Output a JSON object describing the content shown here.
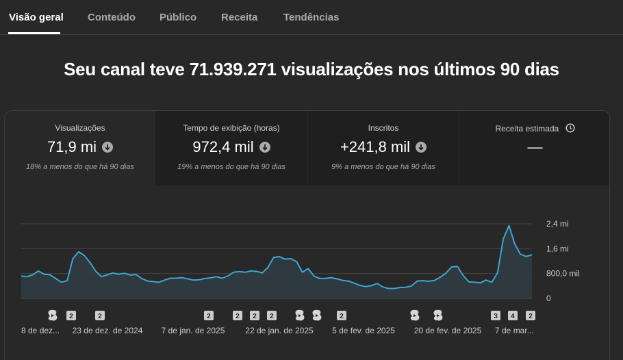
{
  "tabs": [
    {
      "label": "Visão geral",
      "active": true
    },
    {
      "label": "Conteúdo",
      "active": false
    },
    {
      "label": "Público",
      "active": false
    },
    {
      "label": "Receita",
      "active": false
    },
    {
      "label": "Tendências",
      "active": false
    }
  ],
  "headline": "Seu canal teve 71.939.271 visualizações nos últimos 90 dias",
  "metrics": [
    {
      "label": "Visualizações",
      "value": "71,9 mi",
      "comparison": "18% a menos do que há 90 dias",
      "trend_icon": "arrow-down-circle-icon"
    },
    {
      "label": "Tempo de exibição (horas)",
      "value": "972,4 mil",
      "comparison": "19% a menos do que há 90 dias",
      "trend_icon": "arrow-down-circle-icon"
    },
    {
      "label": "Inscritos",
      "value": "+241,8 mil",
      "comparison": "9% a menos do que há 90 dias",
      "trend_icon": "arrow-down-circle-icon"
    },
    {
      "label": "Receita estimada",
      "value": "—",
      "comparison": "",
      "trend_icon": "clock-icon"
    }
  ],
  "colors": {
    "background": "#282828",
    "line": "#3ea6d1",
    "fill": "#2f3b42",
    "marker": "#cccccc"
  },
  "chart_data": {
    "type": "area",
    "y_tick_labels": [
      "0",
      "800,0 mil",
      "1,6 mi",
      "2,4 mi"
    ],
    "y_ticks": [
      0,
      800000,
      1600000,
      2400000
    ],
    "ylim": [
      0,
      2400000
    ],
    "x_tick_labels": [
      "8 de dez...",
      "23 de dez. de 2024",
      "7 de jan. de 2025",
      "22 de jan. de 2025",
      "5 de fev. de 2025",
      "20 de fev. de 2025",
      "7 de mar..."
    ],
    "grid": true,
    "series": [
      {
        "values": [
          720000,
          700000,
          760000,
          880000,
          780000,
          760000,
          640000,
          520000,
          570000,
          1280000,
          1500000,
          1380000,
          1150000,
          870000,
          700000,
          760000,
          820000,
          780000,
          810000,
          750000,
          770000,
          640000,
          560000,
          540000,
          520000,
          590000,
          650000,
          650000,
          670000,
          630000,
          590000,
          600000,
          640000,
          660000,
          700000,
          650000,
          720000,
          840000,
          860000,
          840000,
          880000,
          870000,
          820000,
          1000000,
          1320000,
          1340000,
          1260000,
          1280000,
          1180000,
          840000,
          960000,
          720000,
          640000,
          640000,
          670000,
          630000,
          580000,
          560000,
          490000,
          420000,
          380000,
          410000,
          480000,
          370000,
          320000,
          320000,
          350000,
          360000,
          400000,
          560000,
          570000,
          550000,
          580000,
          680000,
          810000,
          1010000,
          1030000,
          740000,
          530000,
          520000,
          500000,
          590000,
          520000,
          820000,
          1910000,
          2340000,
          1750000,
          1420000,
          1350000,
          1400000
        ]
      }
    ],
    "annotation_markers": [
      {
        "type": "shorts",
        "label": ""
      },
      {
        "type": "count",
        "label": "2"
      },
      {
        "type": "count",
        "label": "2"
      },
      {
        "type": "count",
        "label": "2"
      },
      {
        "type": "count",
        "label": "2"
      },
      {
        "type": "count",
        "label": "2"
      },
      {
        "type": "count",
        "label": "2"
      },
      {
        "type": "shorts",
        "label": ""
      },
      {
        "type": "shorts",
        "label": ""
      },
      {
        "type": "count",
        "label": "2"
      },
      {
        "type": "shorts",
        "label": ""
      },
      {
        "type": "shorts",
        "label": ""
      },
      {
        "type": "count",
        "label": "3"
      },
      {
        "type": "count",
        "label": "4"
      },
      {
        "type": "count",
        "label": "2"
      }
    ]
  }
}
